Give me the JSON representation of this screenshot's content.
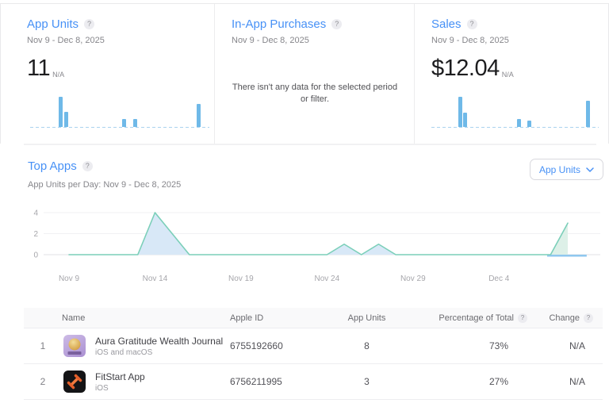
{
  "icons": {
    "help": "?"
  },
  "colors": {
    "accent_blue": "#4791f6",
    "bar_blue": "#6fb9e8",
    "line_teal": "#7bcfb9",
    "area_fill_blue": "#d8e8f7",
    "area_fill_green": "#ddf0e8",
    "baseline_blue": "#8fc7ef"
  },
  "cards": {
    "app_units": {
      "title": "App Units",
      "date_range": "Nov 9 - Dec 8, 2025",
      "value": "11",
      "value_suffix": "N/A"
    },
    "in_app_purchases": {
      "title": "In-App Purchases",
      "date_range": "Nov 9 - Dec 8, 2025",
      "empty_message": "There isn't any data for the selected period or filter."
    },
    "sales": {
      "title": "Sales",
      "date_range": "Nov 9 - Dec 8, 2025",
      "value": "$12.04",
      "value_suffix": "N/A"
    }
  },
  "top_apps": {
    "title": "Top Apps",
    "subtitle": "App Units per Day: Nov 9 - Dec 8, 2025",
    "metric_dropdown_label": "App Units"
  },
  "chart_data": [
    {
      "id": "app-units-sparkline",
      "type": "bar",
      "title": "App Units daily sparkline",
      "x_range": [
        "Nov 9, 2025",
        "Dec 8, 2025"
      ],
      "num_days": 30,
      "ymax": 4,
      "bars": [
        {
          "day_index": 5,
          "date": "Nov 14",
          "value": 4
        },
        {
          "day_index": 6,
          "date": "Nov 15",
          "value": 2
        },
        {
          "day_index": 16,
          "date": "Nov 25",
          "value": 1
        },
        {
          "day_index": 18,
          "date": "Nov 27",
          "value": 1
        },
        {
          "day_index": 29,
          "date": "Dec 8",
          "value": 3
        }
      ]
    },
    {
      "id": "sales-sparkline",
      "type": "bar",
      "title": "Sales daily sparkline (heights relative to tallest bar)",
      "x_range": [
        "Nov 9, 2025",
        "Dec 8, 2025"
      ],
      "num_days": 30,
      "bars": [
        {
          "day_index": 5,
          "date": "Nov 14",
          "relative_height": 1.0
        },
        {
          "day_index": 6,
          "date": "Nov 15",
          "relative_height": 0.47
        },
        {
          "day_index": 16,
          "date": "Nov 25",
          "relative_height": 0.26
        },
        {
          "day_index": 18,
          "date": "Nov 27",
          "relative_height": 0.21
        },
        {
          "day_index": 29,
          "date": "Dec 8",
          "relative_height": 0.87
        }
      ]
    },
    {
      "id": "top-apps-daily",
      "type": "area",
      "title": "App Units per Day: Nov 9 - Dec 8, 2025",
      "num_days": 30,
      "ylim": [
        0,
        4
      ],
      "yticks": [
        0,
        2,
        4
      ],
      "grid": true,
      "x_ticks": [
        {
          "day_index": 0,
          "label": "Nov 9"
        },
        {
          "day_index": 5,
          "label": "Nov 14"
        },
        {
          "day_index": 10,
          "label": "Nov 19"
        },
        {
          "day_index": 15,
          "label": "Nov 24"
        },
        {
          "day_index": 20,
          "label": "Nov 29"
        },
        {
          "day_index": 25,
          "label": "Dec 4"
        }
      ],
      "series": [
        {
          "name": "Aura Gratitude Wealth Journal",
          "fill": "#d8e8f7",
          "values": [
            0,
            0,
            0,
            0,
            0,
            4,
            2,
            0,
            0,
            0,
            0,
            0,
            0,
            0,
            0,
            0,
            1,
            0,
            1,
            0,
            0,
            0,
            0,
            0,
            0,
            0,
            0,
            0,
            0,
            0
          ]
        },
        {
          "name": "FitStart App",
          "fill": "#ddf0e8",
          "values": [
            0,
            0,
            0,
            0,
            0,
            0,
            0,
            0,
            0,
            0,
            0,
            0,
            0,
            0,
            0,
            0,
            0,
            0,
            0,
            0,
            0,
            0,
            0,
            0,
            0,
            0,
            0,
            0,
            0,
            3
          ]
        }
      ],
      "total_line_color": "#7bcfb9",
      "baseline_highlight": {
        "from_day": 27.8,
        "to_day": 30.1,
        "color": "#8fc7ef"
      }
    }
  ],
  "table": {
    "columns": [
      "Name",
      "Apple ID",
      "App Units",
      "Percentage of Total",
      "Change"
    ],
    "rows": [
      {
        "rank": "1",
        "name": "Aura Gratitude Wealth Journal",
        "platforms": "iOS and macOS",
        "apple_id": "6755192660",
        "app_units": "8",
        "percentage": "73%",
        "change": "N/A"
      },
      {
        "rank": "2",
        "name": "FitStart App",
        "platforms": "iOS",
        "apple_id": "6756211995",
        "app_units": "3",
        "percentage": "27%",
        "change": "N/A"
      }
    ]
  }
}
